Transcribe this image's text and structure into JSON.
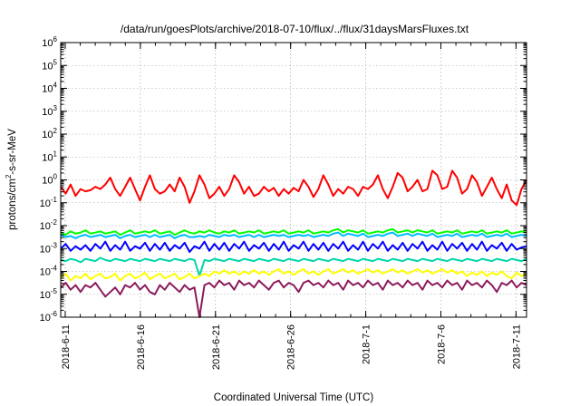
{
  "chart_data": {
    "type": "line",
    "title": "/data/run/goesPlots/archive/2018-07-10/flux/../flux/31daysMarsFluxes.txt",
    "xlabel": "Coordinated Universal Time (UTC)",
    "ylabel_parts": {
      "base": "protons/cm",
      "sup": "2",
      "rest": "-s-sr-MeV"
    },
    "x_domain_days": [
      0,
      31
    ],
    "x_ticks": [
      {
        "label": "2018-6-11",
        "day": 0.3
      },
      {
        "label": "2018-6-16",
        "day": 5.3
      },
      {
        "label": "2018-6-21",
        "day": 10.3
      },
      {
        "label": "2018-6-26",
        "day": 15.3
      },
      {
        "label": "2018-7-1",
        "day": 20.3
      },
      {
        "label": "2018-7-6",
        "day": 25.3
      },
      {
        "label": "2018-7-11",
        "day": 30.3
      }
    ],
    "y_scale": "log",
    "y_exponent_range": [
      -6,
      6
    ],
    "y_ticks": [
      {
        "base": "10",
        "exp": "-6"
      },
      {
        "base": "10",
        "exp": "-5"
      },
      {
        "base": "10",
        "exp": "-4"
      },
      {
        "base": "10",
        "exp": "-3"
      },
      {
        "base": "10",
        "exp": "-2"
      },
      {
        "base": "10",
        "exp": "-1"
      },
      {
        "base": "10",
        "exp": "0"
      },
      {
        "base": "10",
        "exp": "1"
      },
      {
        "base": "10",
        "exp": "2"
      },
      {
        "base": "10",
        "exp": "3"
      },
      {
        "base": "10",
        "exp": "4"
      },
      {
        "base": "10",
        "exp": "5"
      },
      {
        "base": "10",
        "exp": "6"
      }
    ],
    "grid": true,
    "series": [
      {
        "color": "#ff0000",
        "log_values": [
          -0.3,
          -0.6,
          -0.2,
          -0.7,
          -0.4,
          -0.5,
          -0.45,
          -0.3,
          -0.4,
          -0.2,
          0.1,
          -0.4,
          -0.7,
          -0.3,
          0.1,
          -0.4,
          -0.9,
          -0.3,
          0.2,
          -0.4,
          -0.6,
          -0.5,
          -0.2,
          -0.5,
          0.1,
          -0.3,
          -1.0,
          -0.5,
          0.2,
          -0.2,
          -0.8,
          -0.6,
          -0.3,
          -0.7,
          -0.4,
          0.2,
          -0.1,
          -0.6,
          -0.3,
          -0.7,
          -0.6,
          -0.3,
          -0.5,
          -0.35,
          -0.7,
          -0.4,
          -0.6,
          -0.35,
          -0.5,
          0.0,
          -0.3,
          -0.75,
          -0.4,
          0.2,
          -0.2,
          -0.7,
          -0.4,
          -0.6,
          -0.3,
          -0.4,
          -0.7,
          -0.3,
          -0.4,
          -0.2,
          0.2,
          -0.4,
          -0.8,
          -0.3,
          0.3,
          0.1,
          -0.5,
          -0.3,
          0.0,
          -0.5,
          -0.4,
          0.4,
          0.2,
          -0.4,
          -0.3,
          0.4,
          0.1,
          -0.6,
          -0.4,
          0.2,
          -0.1,
          -0.7,
          -0.3,
          0.1,
          -0.4,
          -0.8,
          -0.2,
          -0.9,
          -1.1,
          -0.4,
          0.0
        ]
      },
      {
        "color": "#00ff00",
        "log_values": [
          -2.3,
          -2.4,
          -2.25,
          -2.35,
          -2.3,
          -2.2,
          -2.35,
          -2.3,
          -2.25,
          -2.35,
          -2.3,
          -2.25,
          -2.4,
          -2.3,
          -2.2,
          -2.35,
          -2.3,
          -2.25,
          -2.3,
          -2.2,
          -2.35,
          -2.3,
          -2.25,
          -2.4,
          -2.3,
          -2.2,
          -2.3,
          -2.35,
          -2.25,
          -2.3,
          -2.2,
          -2.3,
          -2.35,
          -2.25,
          -2.3,
          -2.2,
          -2.35,
          -2.3,
          -2.25,
          -2.3,
          -2.2,
          -2.35,
          -2.3,
          -2.25,
          -2.3,
          -2.2,
          -2.35,
          -2.3,
          -2.25,
          -2.3,
          -2.2,
          -2.35,
          -2.3,
          -2.25,
          -2.3,
          -2.2,
          -2.15,
          -2.3,
          -2.2,
          -2.25,
          -2.3,
          -2.2,
          -2.35,
          -2.3,
          -2.25,
          -2.3,
          -2.2,
          -2.15,
          -2.3,
          -2.25,
          -2.2,
          -2.3,
          -2.2,
          -2.25,
          -2.3,
          -2.2,
          -2.35,
          -2.3,
          -2.25,
          -2.3,
          -2.2,
          -2.35,
          -2.3,
          -2.25,
          -2.3,
          -2.2,
          -2.35,
          -2.3,
          -2.25,
          -2.3,
          -2.2,
          -2.35,
          -2.3,
          -2.25,
          -2.3
        ]
      },
      {
        "color": "#00bbff",
        "log_values": [
          -2.4,
          -2.5,
          -2.45,
          -2.55,
          -2.45,
          -2.4,
          -2.5,
          -2.45,
          -2.4,
          -2.5,
          -2.45,
          -2.4,
          -2.55,
          -2.45,
          -2.4,
          -2.5,
          -2.45,
          -2.4,
          -2.5,
          -2.4,
          -2.5,
          -2.45,
          -2.4,
          -2.55,
          -2.45,
          -2.4,
          -2.5,
          -2.5,
          -2.45,
          -2.5,
          -2.4,
          -2.45,
          -2.5,
          -2.4,
          -2.45,
          -2.4,
          -2.5,
          -2.45,
          -2.4,
          -2.5,
          -2.4,
          -2.5,
          -2.45,
          -2.4,
          -2.45,
          -2.4,
          -2.5,
          -2.45,
          -2.4,
          -2.45,
          -2.4,
          -2.5,
          -2.45,
          -2.4,
          -2.45,
          -2.35,
          -2.3,
          -2.45,
          -2.35,
          -2.4,
          -2.45,
          -2.35,
          -2.5,
          -2.45,
          -2.4,
          -2.45,
          -2.35,
          -2.3,
          -2.45,
          -2.4,
          -2.35,
          -2.45,
          -2.35,
          -2.4,
          -2.45,
          -2.35,
          -2.5,
          -2.45,
          -2.4,
          -2.45,
          -2.35,
          -2.5,
          -2.45,
          -2.4,
          -2.45,
          -2.35,
          -2.5,
          -2.45,
          -2.4,
          -2.45,
          -2.35,
          -2.5,
          -2.45,
          -2.4,
          -2.45
        ]
      },
      {
        "color": "#0000ff",
        "log_values": [
          -3.0,
          -2.8,
          -3.1,
          -2.9,
          -3.05,
          -2.85,
          -3.1,
          -2.8,
          -3.0,
          -2.7,
          -3.1,
          -2.85,
          -3.05,
          -2.7,
          -3.1,
          -2.9,
          -3.0,
          -2.75,
          -3.1,
          -2.8,
          -3.05,
          -2.75,
          -3.1,
          -2.85,
          -3.0,
          -2.75,
          -3.15,
          -2.9,
          -3.0,
          -2.7,
          -3.1,
          -2.8,
          -3.05,
          -2.75,
          -3.1,
          -2.8,
          -3.0,
          -2.7,
          -3.1,
          -2.85,
          -3.0,
          -2.75,
          -3.1,
          -2.8,
          -3.05,
          -2.7,
          -3.1,
          -2.85,
          -3.0,
          -2.7,
          -3.1,
          -2.8,
          -3.05,
          -2.75,
          -3.1,
          -2.8,
          -3.0,
          -2.7,
          -3.1,
          -2.85,
          -3.05,
          -2.7,
          -3.1,
          -2.8,
          -3.0,
          -2.7,
          -3.1,
          -2.85,
          -3.05,
          -2.75,
          -3.1,
          -2.8,
          -3.0,
          -2.7,
          -3.1,
          -2.85,
          -3.05,
          -2.7,
          -3.1,
          -2.8,
          -3.0,
          -2.75,
          -3.1,
          -2.8,
          -3.05,
          -2.7,
          -3.1,
          -2.85,
          -3.0,
          -2.75,
          -3.1,
          -2.8,
          -3.05,
          -2.95,
          -2.9
        ]
      },
      {
        "color": "#00d6a8",
        "log_values": [
          -3.5,
          -3.55,
          -3.45,
          -3.5,
          -3.6,
          -3.45,
          -3.5,
          -3.55,
          -3.4,
          -3.5,
          -3.55,
          -3.45,
          -3.5,
          -3.55,
          -3.45,
          -3.5,
          -3.55,
          -3.45,
          -3.5,
          -3.55,
          -3.45,
          -3.5,
          -3.55,
          -3.45,
          -3.5,
          -3.55,
          -3.45,
          -3.5,
          -4.2,
          -3.5,
          -3.55,
          -3.45,
          -3.5,
          -3.55,
          -3.45,
          -3.5,
          -3.55,
          -3.45,
          -3.5,
          -3.55,
          -3.45,
          -3.5,
          -3.55,
          -3.45,
          -3.5,
          -3.55,
          -3.45,
          -3.5,
          -3.55,
          -3.45,
          -3.5,
          -3.55,
          -3.45,
          -3.5,
          -3.55,
          -3.45,
          -3.5,
          -3.55,
          -3.45,
          -3.5,
          -3.55,
          -3.45,
          -3.5,
          -3.55,
          -3.45,
          -3.5,
          -3.55,
          -3.45,
          -3.5,
          -3.55,
          -3.45,
          -3.5,
          -3.55,
          -3.45,
          -3.5,
          -3.55,
          -3.45,
          -3.5,
          -3.55,
          -3.45,
          -3.5,
          -3.55,
          -3.45,
          -3.5,
          -3.55,
          -3.45,
          -3.5,
          -3.55,
          -3.45,
          -3.5,
          -3.55,
          -3.45,
          -3.5,
          -3.55,
          -3.45
        ]
      },
      {
        "color": "#ffff00",
        "log_values": [
          -4.3,
          -4.1,
          -4.4,
          -4.2,
          -4.3,
          -4.1,
          -4.35,
          -4.2,
          -4.1,
          -4.3,
          -4.25,
          -4.1,
          -4.4,
          -4.2,
          -4.1,
          -4.3,
          -4.2,
          -4.05,
          -4.35,
          -4.2,
          -4.1,
          -4.3,
          -4.2,
          -4.1,
          -4.35,
          -4.25,
          -4.1,
          -4.3,
          -4.2,
          -4.1,
          -4.2,
          -4.0,
          -4.1,
          -3.95,
          -4.1,
          -4.0,
          -4.15,
          -4.0,
          -4.1,
          -3.95,
          -4.1,
          -4.0,
          -4.15,
          -4.0,
          -3.9,
          -4.1,
          -4.0,
          -4.15,
          -4.0,
          -3.9,
          -4.1,
          -4.0,
          -4.15,
          -4.0,
          -3.9,
          -4.1,
          -4.0,
          -3.9,
          -4.05,
          -3.95,
          -4.1,
          -4.0,
          -3.9,
          -4.05,
          -3.95,
          -4.1,
          -4.0,
          -3.9,
          -4.05,
          -3.95,
          -4.1,
          -4.0,
          -3.9,
          -4.05,
          -3.95,
          -4.1,
          -4.0,
          -3.9,
          -4.05,
          -3.95,
          -4.1,
          -4.0,
          -4.2,
          -4.05,
          -4.15,
          -4.0,
          -4.2,
          -4.05,
          -4.15,
          -4.0,
          -4.2,
          -4.3,
          -4.05,
          -4.2,
          -4.1
        ]
      },
      {
        "color": "#8b1a5b",
        "log_values": [
          -4.7,
          -4.5,
          -4.8,
          -4.6,
          -4.9,
          -4.6,
          -4.7,
          -4.5,
          -4.8,
          -5.1,
          -4.9,
          -4.7,
          -5.0,
          -4.6,
          -4.7,
          -4.5,
          -4.8,
          -4.6,
          -4.9,
          -5.0,
          -4.6,
          -4.8,
          -4.5,
          -4.7,
          -4.9,
          -4.6,
          -4.8,
          -4.7,
          -6.0,
          -4.6,
          -4.5,
          -4.7,
          -4.4,
          -4.6,
          -4.5,
          -4.8,
          -4.4,
          -4.6,
          -4.5,
          -4.7,
          -4.4,
          -4.6,
          -4.8,
          -4.5,
          -4.4,
          -4.7,
          -4.5,
          -4.6,
          -4.9,
          -4.5,
          -4.4,
          -4.6,
          -4.5,
          -4.7,
          -4.4,
          -4.6,
          -4.5,
          -4.8,
          -4.4,
          -4.6,
          -4.5,
          -4.7,
          -4.4,
          -4.6,
          -4.5,
          -4.8,
          -4.4,
          -4.6,
          -4.5,
          -4.7,
          -4.4,
          -4.6,
          -4.5,
          -4.8,
          -4.4,
          -4.6,
          -4.5,
          -4.7,
          -4.4,
          -4.6,
          -4.5,
          -4.8,
          -4.4,
          -4.6,
          -4.5,
          -4.7,
          -4.4,
          -4.6,
          -4.9,
          -4.5,
          -4.6,
          -4.4,
          -4.7,
          -4.5,
          -4.6
        ]
      }
    ]
  }
}
